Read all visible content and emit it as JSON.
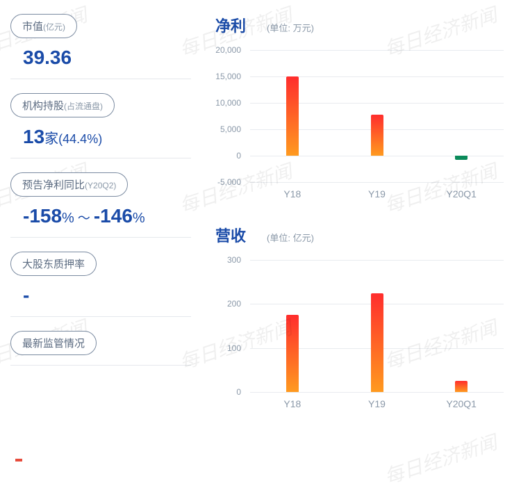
{
  "cards": [
    {
      "label": "市值",
      "sub": "(亿元)",
      "value": "39.36"
    },
    {
      "label": "机构持股",
      "sub": "(占流通盘)",
      "value_a": "13",
      "unit_a": "家",
      "value_b": "(44.4",
      "unit_b": "%)"
    },
    {
      "label": "预告净利同比",
      "sub": "(Y20Q2)",
      "value_a": "-158",
      "unit_a": "%",
      "join": " ～ ",
      "value_b": "-146",
      "unit_b": "%"
    },
    {
      "label": "大股东质押率",
      "sub": "",
      "value": "-"
    },
    {
      "label": "最新监管情况",
      "sub": "",
      "value": ""
    }
  ],
  "chart1": {
    "title": "净利",
    "unit": "(单位: 万元)",
    "ymin": -5000,
    "ymax": 20000,
    "ytick_labels": [
      "-5,000",
      "0",
      "5,000",
      "10,000",
      "15,000",
      "20,000"
    ],
    "ytick_vals": [
      -5000,
      0,
      5000,
      10000,
      15000,
      20000
    ],
    "categories": [
      "Y18",
      "Y19",
      "Y20Q1"
    ],
    "values": [
      15000,
      7700,
      -850
    ],
    "bar_gradient_top": "#ff2d2d",
    "bar_gradient_bottom": "#ff9a1f",
    "neg_color": "#0b8a5a",
    "grid_color": "#e8ebef",
    "tick_font_color": "#8a98a8"
  },
  "chart2": {
    "title": "营收",
    "unit": "(单位: 亿元)",
    "ymin": 0,
    "ymax": 300,
    "ytick_labels": [
      "0",
      "100",
      "200",
      "300"
    ],
    "ytick_vals": [
      0,
      100,
      200,
      300
    ],
    "categories": [
      "Y18",
      "Y19",
      "Y20Q1"
    ],
    "values": [
      176,
      225,
      25
    ],
    "bar_gradient_top": "#ff2d2d",
    "bar_gradient_bottom": "#ff9a1f",
    "grid_color": "#e8ebef",
    "tick_font_color": "#8a98a8"
  },
  "colors": {
    "title_blue": "#1a4ba8",
    "label_border": "#7a8aa0",
    "label_text": "#5a6a80",
    "sub_text": "#8a98a8",
    "divider": "#e5e8ec"
  },
  "watermark_text": "每日经济新闻"
}
